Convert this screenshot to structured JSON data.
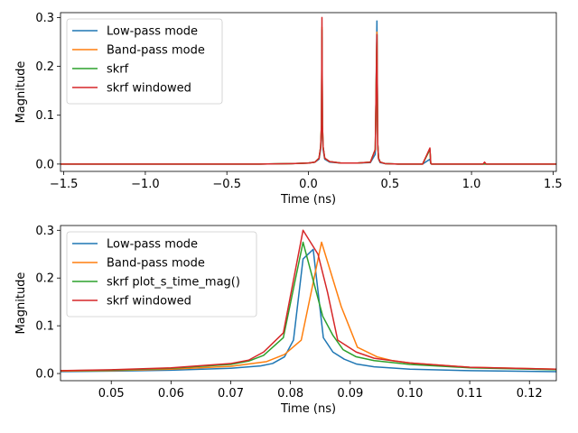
{
  "chart_data": [
    {
      "type": "line",
      "xlabel": "Time (ns)",
      "ylabel": "Magnitude",
      "xlim": [
        -1.52,
        1.52
      ],
      "ylim": [
        -0.015,
        0.31
      ],
      "xticks": [
        -1.5,
        -1.0,
        -0.5,
        0.0,
        0.5,
        1.0,
        1.5
      ],
      "xtick_labels": [
        "−1.5",
        "−1.0",
        "−0.5",
        "0.0",
        "0.5",
        "1.0",
        "1.5"
      ],
      "yticks": [
        0.0,
        0.1,
        0.2,
        0.3
      ],
      "ytick_labels": [
        "0.0",
        "0.1",
        "0.2",
        "0.3"
      ],
      "legend_position": "upper-left",
      "series": [
        {
          "name": "Low-pass mode",
          "color": "#1f77b4",
          "x": [
            -1.52,
            -0.3,
            -0.1,
            0.0,
            0.04,
            0.065,
            0.075,
            0.08,
            0.083,
            0.086,
            0.09,
            0.1,
            0.13,
            0.2,
            0.3,
            0.38,
            0.41,
            0.42,
            0.425,
            0.43,
            0.44,
            0.47,
            0.55,
            0.7,
            0.745,
            0.75,
            0.755,
            0.77,
            0.9,
            1.52
          ],
          "y": [
            0.0,
            0.0,
            0.001,
            0.002,
            0.004,
            0.01,
            0.03,
            0.07,
            0.26,
            0.07,
            0.03,
            0.01,
            0.004,
            0.002,
            0.002,
            0.003,
            0.02,
            0.293,
            0.04,
            0.01,
            0.003,
            0.001,
            0.0,
            0.0,
            0.01,
            0.001,
            0.0,
            0.0,
            0.0,
            0.0
          ]
        },
        {
          "name": "Band-pass mode",
          "color": "#ff7f0e",
          "x": [
            -1.52,
            -0.3,
            -0.1,
            0.0,
            0.04,
            0.065,
            0.075,
            0.08,
            0.083,
            0.086,
            0.09,
            0.1,
            0.13,
            0.2,
            0.3,
            0.38,
            0.41,
            0.42,
            0.425,
            0.43,
            0.44,
            0.47,
            0.55,
            0.7,
            0.745,
            0.75,
            0.755,
            0.77,
            0.9,
            1.52
          ],
          "y": [
            0.0,
            0.0,
            0.001,
            0.002,
            0.004,
            0.012,
            0.035,
            0.08,
            0.28,
            0.08,
            0.035,
            0.012,
            0.005,
            0.002,
            0.002,
            0.004,
            0.03,
            0.27,
            0.04,
            0.012,
            0.004,
            0.001,
            0.0,
            0.0,
            0.03,
            0.002,
            0.0,
            0.0,
            0.0,
            0.0
          ]
        },
        {
          "name": "skrf",
          "color": "#2ca02c",
          "x": [
            -1.52,
            -0.3,
            -0.1,
            0.0,
            0.04,
            0.065,
            0.075,
            0.08,
            0.083,
            0.086,
            0.09,
            0.1,
            0.13,
            0.2,
            0.3,
            0.38,
            0.41,
            0.42,
            0.425,
            0.43,
            0.44,
            0.47,
            0.55,
            0.7,
            0.745,
            0.75,
            0.755,
            0.77,
            0.9,
            1.52
          ],
          "y": [
            0.0,
            0.0,
            0.001,
            0.002,
            0.004,
            0.012,
            0.035,
            0.08,
            0.275,
            0.08,
            0.035,
            0.012,
            0.005,
            0.002,
            0.002,
            0.004,
            0.03,
            0.265,
            0.04,
            0.012,
            0.004,
            0.001,
            0.0,
            0.0,
            0.03,
            0.002,
            0.0,
            0.0,
            0.0,
            0.0
          ]
        },
        {
          "name": "skrf windowed",
          "color": "#d62728",
          "x": [
            -1.52,
            -0.3,
            -0.1,
            0.0,
            0.04,
            0.065,
            0.075,
            0.08,
            0.083,
            0.086,
            0.09,
            0.1,
            0.13,
            0.2,
            0.3,
            0.38,
            0.41,
            0.42,
            0.425,
            0.43,
            0.44,
            0.47,
            0.55,
            0.7,
            0.745,
            0.75,
            0.755,
            0.77,
            0.9,
            1.07,
            1.08,
            1.09,
            1.52
          ],
          "y": [
            0.0,
            0.0,
            0.001,
            0.002,
            0.004,
            0.012,
            0.035,
            0.08,
            0.3,
            0.08,
            0.035,
            0.012,
            0.005,
            0.002,
            0.002,
            0.004,
            0.03,
            0.265,
            0.04,
            0.012,
            0.004,
            0.001,
            0.0,
            0.0,
            0.033,
            0.002,
            0.0,
            0.0,
            0.0,
            0.0,
            0.004,
            0.0,
            0.0
          ]
        }
      ]
    },
    {
      "type": "line",
      "xlabel": "Time (ns)",
      "ylabel": "Magnitude",
      "xlim": [
        0.0415,
        0.1245
      ],
      "ylim": [
        -0.015,
        0.31
      ],
      "xticks": [
        0.05,
        0.06,
        0.07,
        0.08,
        0.09,
        0.1,
        0.11,
        0.12
      ],
      "xtick_labels": [
        "0.05",
        "0.06",
        "0.07",
        "0.08",
        "0.09",
        "0.10",
        "0.11",
        "0.12"
      ],
      "yticks": [
        0.0,
        0.1,
        0.2,
        0.3
      ],
      "ytick_labels": [
        "0.0",
        "0.1",
        "0.2",
        "0.3"
      ],
      "legend_position": "upper-left",
      "series": [
        {
          "name": "Low-pass mode",
          "color": "#1f77b4",
          "x": [
            0.0415,
            0.05,
            0.06,
            0.07,
            0.075,
            0.077,
            0.079,
            0.0805,
            0.0821,
            0.0838,
            0.0855,
            0.0871,
            0.089,
            0.091,
            0.094,
            0.1,
            0.11,
            0.1245
          ],
          "y": [
            0.004,
            0.005,
            0.007,
            0.011,
            0.016,
            0.021,
            0.035,
            0.07,
            0.24,
            0.26,
            0.075,
            0.045,
            0.03,
            0.02,
            0.014,
            0.009,
            0.006,
            0.004
          ]
        },
        {
          "name": "Band-pass mode",
          "color": "#ff7f0e",
          "x": [
            0.0415,
            0.05,
            0.06,
            0.07,
            0.076,
            0.079,
            0.0818,
            0.0852,
            0.0885,
            0.0912,
            0.0945,
            0.097,
            0.1,
            0.11,
            0.1245
          ],
          "y": [
            0.005,
            0.006,
            0.009,
            0.015,
            0.025,
            0.04,
            0.07,
            0.275,
            0.14,
            0.055,
            0.035,
            0.027,
            0.022,
            0.013,
            0.009
          ]
        },
        {
          "name": "skrf plot_s_time_mag()",
          "color": "#2ca02c",
          "x": [
            0.0415,
            0.05,
            0.06,
            0.07,
            0.073,
            0.0755,
            0.0788,
            0.0821,
            0.0854,
            0.0871,
            0.0888,
            0.091,
            0.094,
            0.1,
            0.11,
            0.1245
          ],
          "y": [
            0.006,
            0.007,
            0.011,
            0.019,
            0.026,
            0.038,
            0.075,
            0.275,
            0.12,
            0.08,
            0.05,
            0.035,
            0.027,
            0.019,
            0.012,
            0.008
          ]
        },
        {
          "name": "skrf windowed",
          "color": "#d62728",
          "x": [
            0.0415,
            0.05,
            0.06,
            0.07,
            0.073,
            0.0755,
            0.0788,
            0.0821,
            0.0846,
            0.0862,
            0.0879,
            0.091,
            0.094,
            0.1,
            0.11,
            0.1245
          ],
          "y": [
            0.006,
            0.008,
            0.012,
            0.021,
            0.028,
            0.045,
            0.085,
            0.3,
            0.25,
            0.17,
            0.07,
            0.045,
            0.032,
            0.022,
            0.013,
            0.009
          ]
        }
      ]
    }
  ]
}
